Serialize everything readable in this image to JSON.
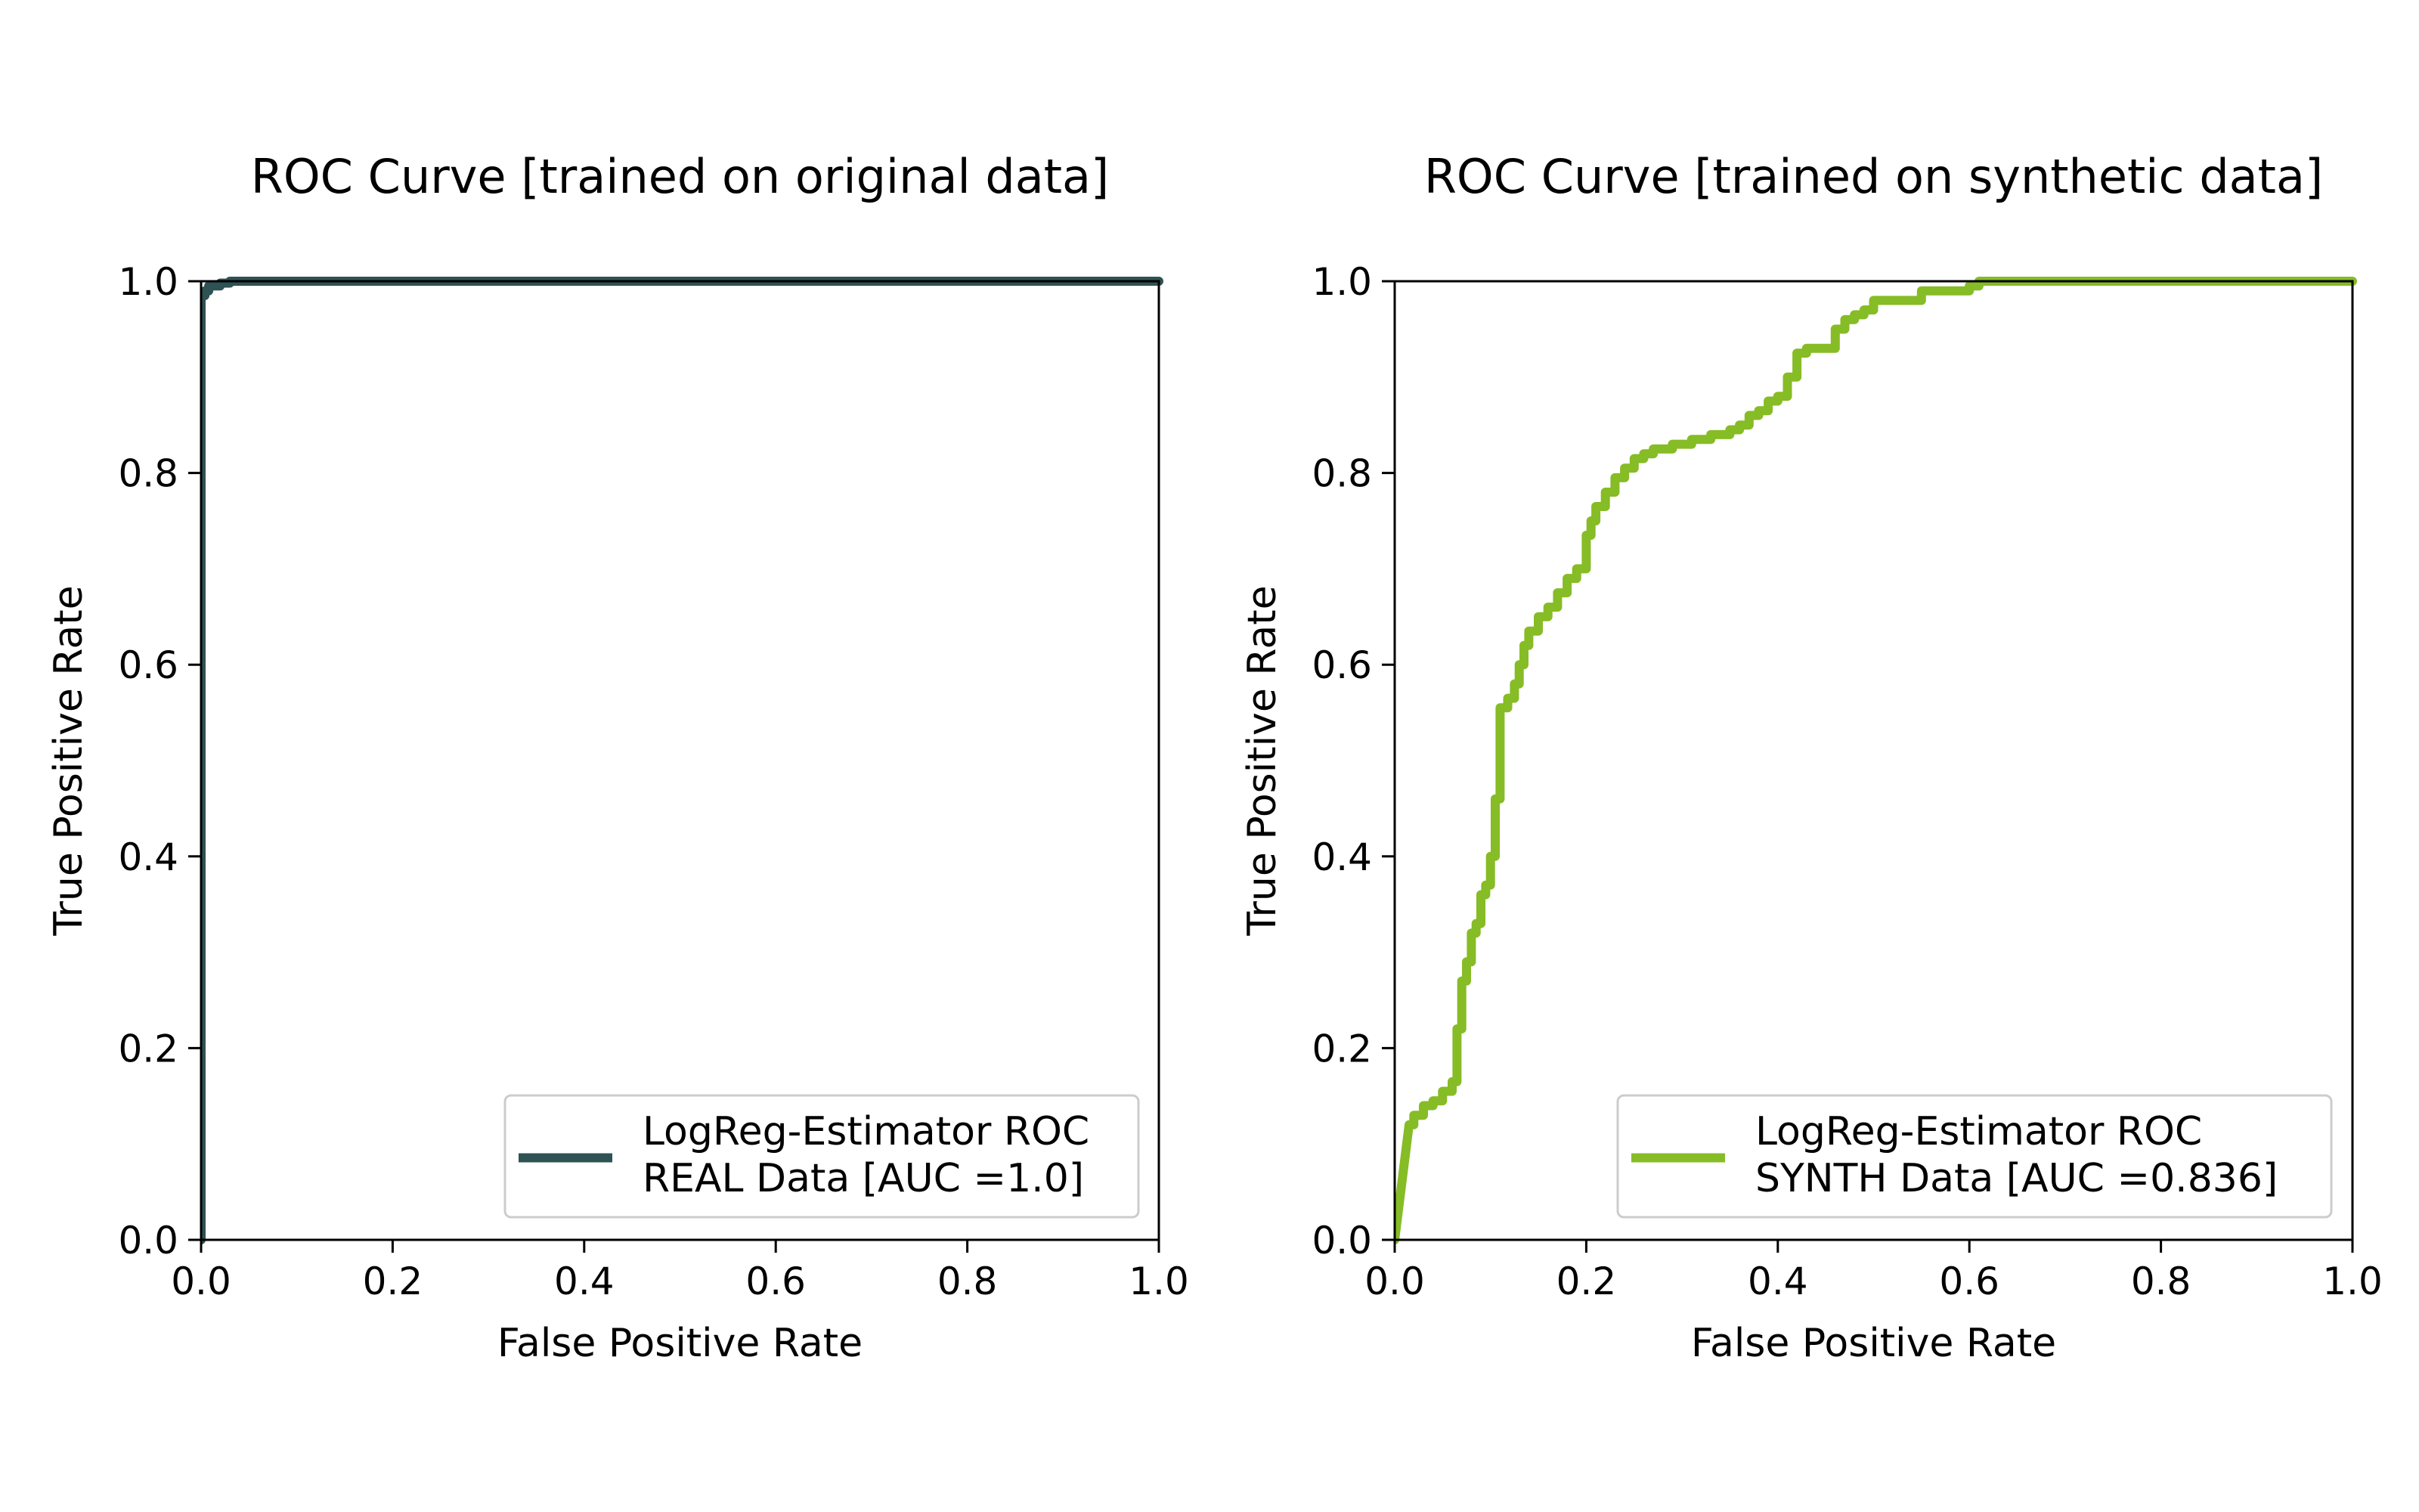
{
  "chart_data": [
    {
      "type": "line",
      "title": "ROC Curve [trained on original data]",
      "xlabel": "False Positive Rate",
      "ylabel": "True Positive Rate",
      "xlim": [
        0,
        1
      ],
      "ylim": [
        0,
        1
      ],
      "xticks": [
        "0.0",
        "0.2",
        "0.4",
        "0.6",
        "0.8",
        "1.0"
      ],
      "yticks": [
        "0.0",
        "0.2",
        "0.4",
        "0.6",
        "0.8",
        "1.0"
      ],
      "grid": false,
      "legend_position": "lower-right",
      "series": [
        {
          "name": "LogReg-Estimator ROC\nREAL Data [AUC =1.0]",
          "color": "#2f5254",
          "x": [
            0.0,
            0.0,
            0.004,
            0.004,
            0.008,
            0.008,
            0.02,
            0.02,
            0.03,
            0.03,
            1.0
          ],
          "y": [
            0.0,
            0.985,
            0.985,
            0.99,
            0.99,
            0.995,
            0.995,
            0.998,
            0.998,
            1.0,
            1.0
          ]
        }
      ]
    },
    {
      "type": "line",
      "title": "ROC Curve [trained on synthetic data]",
      "xlabel": "False Positive Rate",
      "ylabel": "True Positive Rate",
      "xlim": [
        0,
        1
      ],
      "ylim": [
        0,
        1
      ],
      "xticks": [
        "0.0",
        "0.2",
        "0.4",
        "0.6",
        "0.8",
        "1.0"
      ],
      "yticks": [
        "0.0",
        "0.2",
        "0.4",
        "0.6",
        "0.8",
        "1.0"
      ],
      "grid": false,
      "legend_position": "lower-right",
      "series": [
        {
          "name": "LogReg-Estimator ROC\nSYNTH Data [AUC =0.836]",
          "color": "#86bc25",
          "x": [
            0.0,
            0.015,
            0.02,
            0.02,
            0.03,
            0.03,
            0.04,
            0.04,
            0.05,
            0.05,
            0.06,
            0.06,
            0.065,
            0.065,
            0.07,
            0.07,
            0.075,
            0.075,
            0.08,
            0.08,
            0.085,
            0.085,
            0.09,
            0.09,
            0.095,
            0.095,
            0.1,
            0.1,
            0.105,
            0.105,
            0.11,
            0.11,
            0.118,
            0.118,
            0.125,
            0.125,
            0.13,
            0.13,
            0.135,
            0.135,
            0.14,
            0.14,
            0.15,
            0.15,
            0.16,
            0.16,
            0.17,
            0.17,
            0.18,
            0.18,
            0.19,
            0.19,
            0.2,
            0.2,
            0.205,
            0.205,
            0.21,
            0.21,
            0.22,
            0.22,
            0.23,
            0.23,
            0.24,
            0.24,
            0.25,
            0.25,
            0.26,
            0.26,
            0.27,
            0.27,
            0.29,
            0.29,
            0.31,
            0.31,
            0.33,
            0.33,
            0.35,
            0.35,
            0.36,
            0.36,
            0.37,
            0.37,
            0.38,
            0.38,
            0.39,
            0.39,
            0.4,
            0.4,
            0.41,
            0.41,
            0.42,
            0.42,
            0.43,
            0.43,
            0.46,
            0.46,
            0.47,
            0.47,
            0.48,
            0.48,
            0.49,
            0.49,
            0.5,
            0.5,
            0.55,
            0.55,
            0.6,
            0.6,
            0.61,
            0.61,
            1.0
          ],
          "y": [
            0.0,
            0.12,
            0.12,
            0.13,
            0.13,
            0.14,
            0.14,
            0.145,
            0.145,
            0.155,
            0.155,
            0.165,
            0.165,
            0.22,
            0.22,
            0.27,
            0.27,
            0.29,
            0.29,
            0.32,
            0.32,
            0.33,
            0.33,
            0.36,
            0.36,
            0.37,
            0.37,
            0.4,
            0.4,
            0.46,
            0.46,
            0.555,
            0.555,
            0.565,
            0.565,
            0.58,
            0.58,
            0.6,
            0.6,
            0.62,
            0.62,
            0.635,
            0.635,
            0.65,
            0.65,
            0.66,
            0.66,
            0.675,
            0.675,
            0.69,
            0.69,
            0.7,
            0.7,
            0.735,
            0.735,
            0.75,
            0.75,
            0.765,
            0.765,
            0.78,
            0.78,
            0.795,
            0.795,
            0.805,
            0.805,
            0.815,
            0.815,
            0.82,
            0.82,
            0.825,
            0.825,
            0.83,
            0.83,
            0.835,
            0.835,
            0.84,
            0.84,
            0.845,
            0.845,
            0.85,
            0.85,
            0.86,
            0.86,
            0.865,
            0.865,
            0.875,
            0.875,
            0.88,
            0.88,
            0.9,
            0.9,
            0.925,
            0.925,
            0.93,
            0.93,
            0.95,
            0.95,
            0.96,
            0.96,
            0.965,
            0.965,
            0.97,
            0.97,
            0.98,
            0.98,
            0.99,
            0.99,
            0.995,
            0.995,
            1.0,
            1.0
          ]
        }
      ]
    }
  ]
}
